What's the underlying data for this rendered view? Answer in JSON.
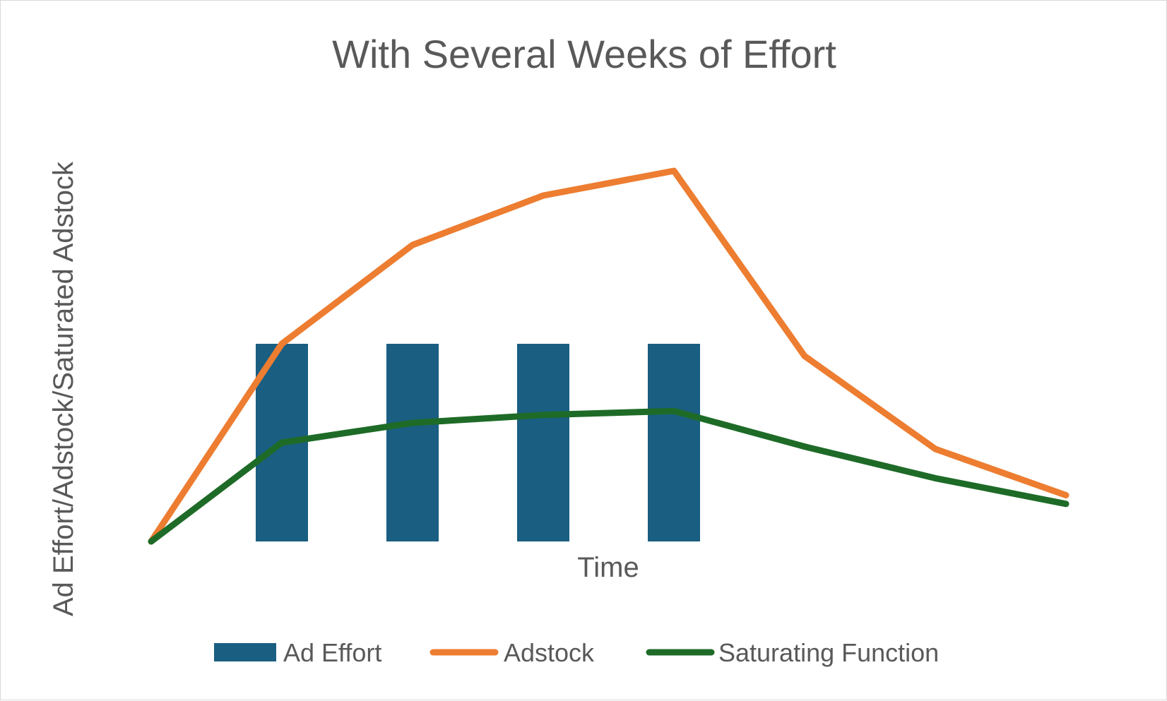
{
  "chart_data": {
    "type": "bar+line",
    "title": "With Several Weeks of Effort",
    "xlabel": "Time",
    "ylabel": "Ad Effort/Adstock/Saturated Adstock",
    "x": [
      0,
      1,
      2,
      3,
      4,
      5,
      6,
      7
    ],
    "ylim": [
      0,
      100
    ],
    "grid": false,
    "legend_position": "bottom",
    "series": [
      {
        "name": "Ad Effort",
        "kind": "bar",
        "color": "#1a5e82",
        "values": [
          0,
          50,
          50,
          50,
          50,
          0,
          0,
          0
        ]
      },
      {
        "name": "Adstock",
        "kind": "line",
        "color": "#ed7d31",
        "values": [
          0,
          50,
          75,
          87.5,
          93.75,
          46.9,
          23.4,
          11.7
        ]
      },
      {
        "name": "Saturating Function",
        "kind": "line",
        "color": "#1e6b28",
        "values": [
          0,
          25,
          30,
          32,
          33,
          24,
          16,
          9.5
        ]
      }
    ]
  }
}
